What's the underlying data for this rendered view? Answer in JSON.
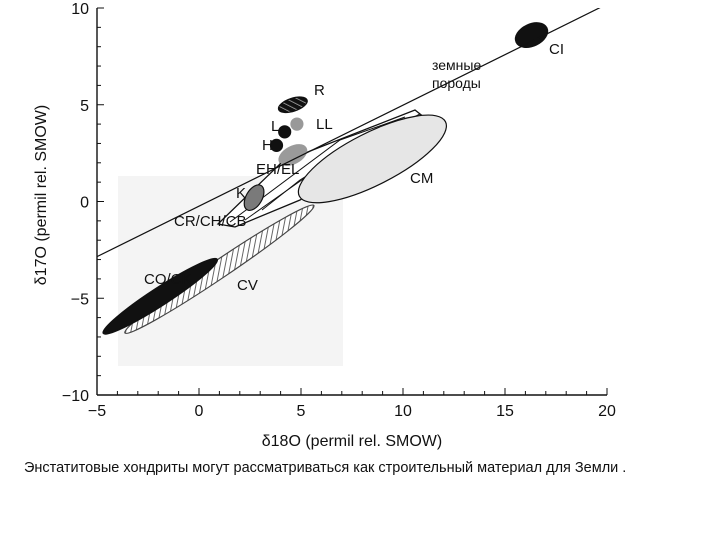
{
  "chart_data": {
    "type": "scatter",
    "title": "",
    "xlabel": "δ18O (permil rel. SMOW)",
    "ylabel": "δ17O (permil rel. SMOW)",
    "xlim": [
      -5,
      20
    ],
    "ylim": [
      -10,
      10
    ],
    "x_ticks": [
      -5,
      0,
      5,
      10,
      15,
      20
    ],
    "y_ticks": [
      -10,
      -5,
      0,
      5,
      10
    ],
    "grid": false,
    "reference_line": {
      "label": "земные породы",
      "from": [
        -5,
        -2.85
      ],
      "to": [
        20,
        10.2
      ]
    },
    "regions": [
      {
        "label": "CI",
        "x": 16.3,
        "y": 8.6,
        "fill": "black"
      },
      {
        "label": "R",
        "x": 4.6,
        "y": 5.0,
        "fill": "hatched"
      },
      {
        "label": "LL",
        "x": 4.8,
        "y": 4.0,
        "fill": "gray"
      },
      {
        "label": "L",
        "x": 4.2,
        "y": 3.6,
        "fill": "black"
      },
      {
        "label": "H",
        "x": 3.8,
        "y": 2.9,
        "fill": "black"
      },
      {
        "label": "EH/EL",
        "x": 4.6,
        "y": 2.4,
        "fill": "gray"
      },
      {
        "label": "K",
        "x": 2.7,
        "y": 0.2,
        "fill": "gray"
      },
      {
        "label": "CM",
        "x": 8.5,
        "y": 2.2,
        "fill": "light-gray"
      },
      {
        "label": "CR/CH/CB",
        "x": 5.9,
        "y": 1.9,
        "fill": "none"
      },
      {
        "label": "CV",
        "x": 1.0,
        "y": -3.5,
        "fill": "hatched"
      },
      {
        "label": "CO/CK",
        "x": -1.9,
        "y": -4.9,
        "fill": "black"
      }
    ]
  },
  "caption": "Энстатитовые хондриты могут рассматриваться как строительный материал для Земли ."
}
